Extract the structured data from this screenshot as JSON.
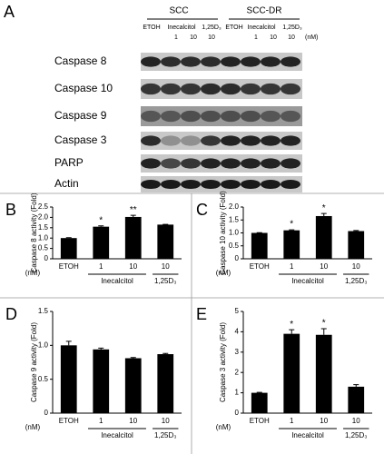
{
  "figure_label": "A",
  "blot": {
    "cell_lines": [
      "SCC",
      "SCC-DR"
    ],
    "lanes": [
      "ETOH",
      "Inecalcitol",
      "1,25D₃",
      "ETOH",
      "Inecalcitol",
      "1,25D₃"
    ],
    "doses": [
      "1",
      "10",
      "10",
      "1",
      "10",
      "10"
    ],
    "dose_unit": "(nM)",
    "rows": [
      "Caspase 8",
      "Caspase 10",
      "Caspase 9",
      "Caspase 3",
      "PARP",
      "Actin"
    ]
  },
  "chart_data": [
    {
      "type": "bar",
      "panel": "B",
      "ylabel": "Caspase 8 activity (Fold)",
      "unit_label": "(nM)",
      "categories": [
        "ETOH",
        "1",
        "10",
        "10"
      ],
      "groups": [
        null,
        "Inecalcitol",
        "Inecalcitol",
        "1,25D₃"
      ],
      "values": [
        1.0,
        1.55,
        2.02,
        1.65
      ],
      "errors": [
        0.02,
        0.04,
        0.08,
        0.01
      ],
      "annotations": [
        null,
        "*",
        "**",
        null
      ],
      "color": "#000000",
      "ylim": [
        0,
        2.5
      ],
      "yticks": [
        0,
        0.5,
        {
          "value": 1,
          "label": "1.0"
        },
        1.5,
        {
          "value": 2,
          "label": "2.0"
        },
        2.5
      ]
    },
    {
      "type": "bar",
      "panel": "C",
      "ylabel": "Caspase 10 activity (Fold)",
      "unit_label": "(nM)",
      "categories": [
        "ETOH",
        "1",
        "10",
        "10"
      ],
      "groups": [
        null,
        "Inecalcitol",
        "Inecalcitol",
        "1,25D₃"
      ],
      "values": [
        1.0,
        1.1,
        1.65,
        1.07
      ],
      "errors": [
        0.01,
        0.02,
        0.1,
        0.02
      ],
      "annotations": [
        null,
        "*",
        "*",
        null
      ],
      "color": "#000000",
      "ylim": [
        0,
        2.0
      ],
      "yticks": [
        0,
        0.5,
        {
          "value": 1,
          "label": "1.0"
        },
        1.5,
        {
          "value": 2,
          "label": "2.0"
        }
      ]
    },
    {
      "type": "bar",
      "panel": "D",
      "ylabel": "Caspase 9 activity (Fold)",
      "unit_label": "(nM)",
      "categories": [
        "ETOH",
        "1",
        "10",
        "10"
      ],
      "groups": [
        null,
        "Inecalcitol",
        "Inecalcitol",
        "1,25D₃"
      ],
      "values": [
        1.0,
        0.94,
        0.81,
        0.87
      ],
      "errors": [
        0.06,
        0.02,
        0.01,
        0.01
      ],
      "annotations": [
        null,
        null,
        null,
        null
      ],
      "color": "#000000",
      "ylim": [
        0,
        1.5
      ],
      "yticks": [
        0,
        0.5,
        {
          "value": 1,
          "label": "1.0"
        },
        1.5
      ]
    },
    {
      "type": "bar",
      "panel": "E",
      "ylabel": "Caspase 3 activity (Fold)",
      "unit_label": "(nM)",
      "categories": [
        "ETOH",
        "1",
        "10",
        "10"
      ],
      "groups": [
        null,
        "Inecalcitol",
        "Inecalcitol",
        "1,25D₃"
      ],
      "values": [
        1.0,
        3.9,
        3.85,
        1.3
      ],
      "errors": [
        0.02,
        0.2,
        0.3,
        0.1
      ],
      "annotations": [
        null,
        "*",
        "*",
        null
      ],
      "color": "#000000",
      "ylim": [
        0,
        5
      ],
      "yticks": [
        0,
        1,
        2,
        3,
        4,
        5
      ]
    }
  ]
}
